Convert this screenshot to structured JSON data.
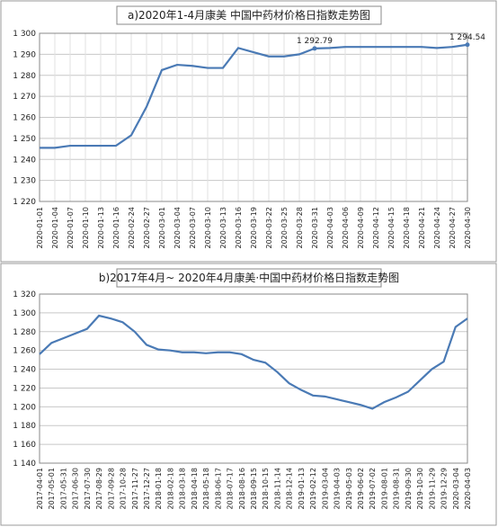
{
  "chart_data": [
    {
      "type": "line",
      "title": "a)2020年1-4月康美 中国中药材价格日指数走势图",
      "categories": [
        "2020-01-01",
        "2020-01-04",
        "2020-01-07",
        "2020-01-10",
        "2020-01-13",
        "2020-01-16",
        "2020-02-24",
        "2020-02-27",
        "2020-03-01",
        "2020-03-04",
        "2020-03-07",
        "2020-03-10",
        "2020-03-13",
        "2020-03-16",
        "2020-03-19",
        "2020-03-22",
        "2020-03-25",
        "2020-03-28",
        "2020-03-31",
        "2020-04-03",
        "2020-04-06",
        "2020-04-09",
        "2020-04-12",
        "2020-04-15",
        "2020-04-18",
        "2020-04-21",
        "2020-04-24",
        "2020-04-27",
        "2020-04-30"
      ],
      "series": [
        {
          "color": "#4a7ab5",
          "values": [
            1245.5,
            1245.5,
            1246.5,
            1246.5,
            1246.5,
            1246.5,
            1251.5,
            1265,
            1282.5,
            1285,
            1284.5,
            1283.5,
            1283.5,
            1293,
            1291,
            1289,
            1289,
            1290,
            1292.79,
            1293,
            1293.5,
            1293.5,
            1293.5,
            1293.5,
            1293.5,
            1293.5,
            1293,
            1293.5,
            1294.54
          ],
          "value_labels": [
            null,
            null,
            null,
            null,
            null,
            null,
            null,
            null,
            null,
            null,
            null,
            null,
            null,
            null,
            null,
            null,
            null,
            null,
            "1 292.79",
            null,
            null,
            null,
            null,
            null,
            null,
            null,
            null,
            null,
            "1 294.54"
          ]
        }
      ],
      "ylim": [
        1220,
        1300
      ],
      "yticks": [
        {
          "value": 1220,
          "label": "1 220"
        },
        {
          "value": 1230,
          "label": "1 230"
        },
        {
          "value": 1240,
          "label": "1 240"
        },
        {
          "value": 1250,
          "label": "1 250"
        },
        {
          "value": 1260,
          "label": "1 260"
        },
        {
          "value": 1270,
          "label": "1 270"
        },
        {
          "value": 1280,
          "label": "1 280"
        },
        {
          "value": 1290,
          "label": "1 290"
        },
        {
          "value": 1300,
          "label": "1 300"
        }
      ],
      "grid": true,
      "xgrid": true
    },
    {
      "type": "line",
      "title": "b)2017年4月~ 2020年4月康美·中国中药材价格日指数走势图",
      "categories": [
        "2017-04-01",
        "2017-05-01",
        "2017-05-31",
        "2017-06-30",
        "2017-07-30",
        "2017-08-29",
        "2017-09-28",
        "2017-10-28",
        "2017-11-27",
        "2017-12-27",
        "2018-01-18",
        "2018-02-18",
        "2018-03-18",
        "2018-04-18",
        "2018-05-18",
        "2018-06-17",
        "2018-07-17",
        "2018-08-16",
        "2018-09-15",
        "2018-10-15",
        "2018-11-14",
        "2018-12-14",
        "2019-01-13",
        "2019-02-12",
        "2019-03-04",
        "2019-04-03",
        "2019-05-03",
        "2019-06-02",
        "2019-07-02",
        "2019-08-01",
        "2019-08-31",
        "2019-09-30",
        "2019-10-30",
        "2019-11-29",
        "2019-12-29",
        "2020-03-04",
        "2020-04-03"
      ],
      "series": [
        {
          "color": "#4a7ab5",
          "values": [
            1256,
            1268,
            1273,
            1278,
            1283,
            1297,
            1294,
            1290,
            1280,
            1266,
            1261,
            1260,
            1258,
            1258,
            1257,
            1258,
            1258,
            1256,
            1250,
            1247,
            1237,
            1225,
            1218,
            1212,
            1211,
            1208,
            1205,
            1202,
            1198,
            1205,
            1210,
            1216,
            1228,
            1240,
            1248,
            1285,
            1294
          ]
        }
      ],
      "ylim": [
        1140,
        1320
      ],
      "yticks": [
        {
          "value": 1140,
          "label": "1 140"
        },
        {
          "value": 1160,
          "label": "1 160"
        },
        {
          "value": 1180,
          "label": "1 180"
        },
        {
          "value": 1200,
          "label": "1 200"
        },
        {
          "value": 1220,
          "label": "1 220"
        },
        {
          "value": 1240,
          "label": "1 240"
        },
        {
          "value": 1260,
          "label": "1 260"
        },
        {
          "value": 1280,
          "label": "1 280"
        },
        {
          "value": 1300,
          "label": "1 300"
        },
        {
          "value": 1320,
          "label": "1 320"
        }
      ],
      "grid": true,
      "xgrid": false
    }
  ]
}
